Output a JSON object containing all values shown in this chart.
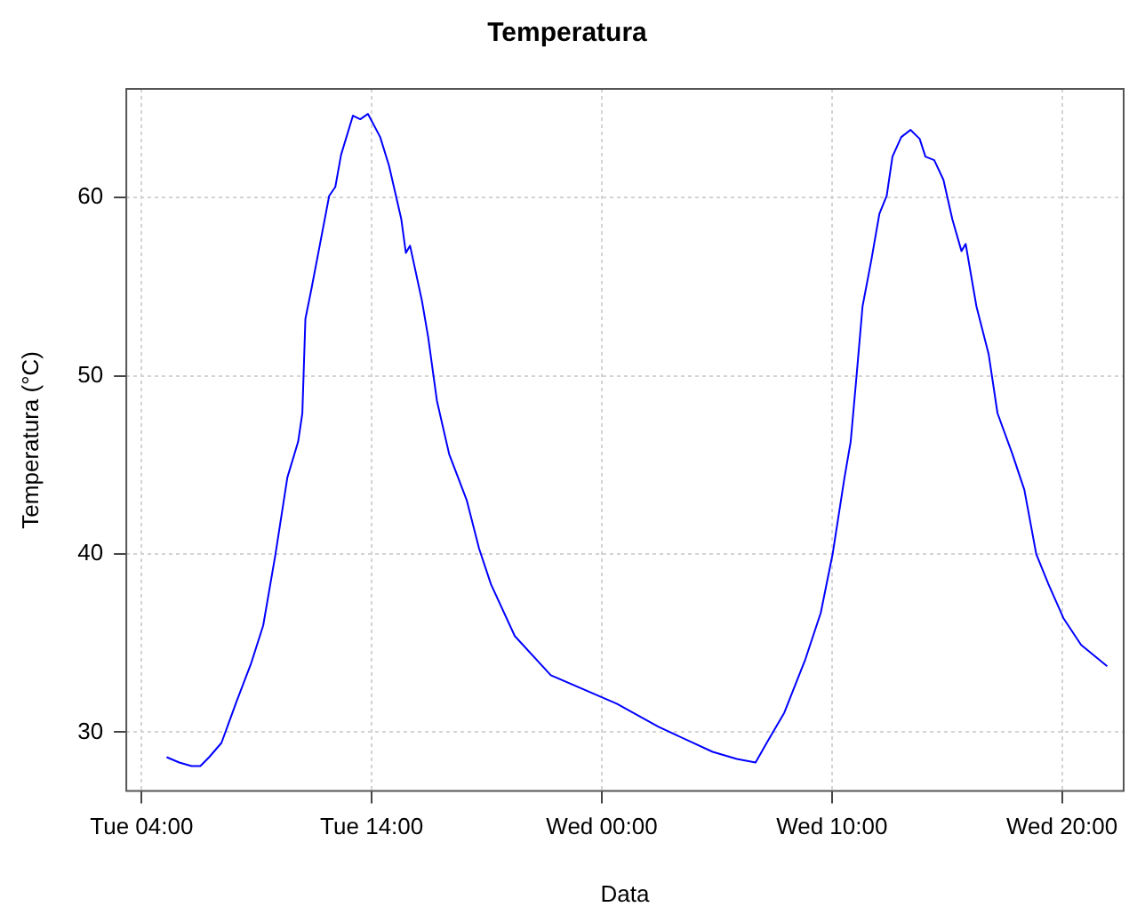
{
  "chart_data": {
    "type": "line",
    "title": "Temperatura",
    "xlabel": "Data",
    "ylabel": "Temperatura (°C)",
    "xlim": [
      "--01-02T03:20",
      "--01-03T22:41"
    ],
    "xticks": [
      {
        "value": "--01-02T04:00",
        "label": "Tue 04:00"
      },
      {
        "value": "--01-02T14:00",
        "label": "Tue 14:00"
      },
      {
        "value": "--01-03T00:00",
        "label": "Wed 00:00"
      },
      {
        "value": "--01-03T10:00",
        "label": "Wed 10:00"
      },
      {
        "value": "--01-03T20:00",
        "label": "Wed 20:00"
      }
    ],
    "ylim": [
      26.7,
      66.1
    ],
    "yticks": [
      30,
      40,
      50,
      60
    ],
    "grid": true,
    "legend": false,
    "marker": "none",
    "line_style": "solid",
    "series": [
      {
        "color": "#0000ff",
        "x": [
          "--01-02T05:05",
          "--01-02T05:38",
          "--01-02T06:10",
          "--01-02T06:33",
          "--01-02T06:56",
          "--01-02T07:28",
          "--01-02T08:07",
          "--01-02T08:46",
          "--01-02T09:17",
          "--01-02T09:49",
          "--01-02T10:20",
          "--01-02T10:48",
          "--01-02T10:59",
          "--01-02T11:07",
          "--01-02T11:22",
          "--01-02T11:46",
          "--01-02T12:09",
          "--01-02T12:25",
          "--01-02T12:40",
          "--01-02T13:11",
          "--01-02T13:30",
          "--01-02T13:50",
          "--01-02T14:22",
          "--01-02T14:45",
          "--01-02T15:17",
          "--01-02T15:29",
          "--01-02T15:40",
          "--01-02T16:11",
          "--01-02T16:27",
          "--01-02T16:50",
          "--01-02T17:22",
          "--01-02T18:08",
          "--01-02T18:40",
          "--01-02T19:11",
          "--01-02T20:13",
          "--01-02T21:47",
          "--01-03T00:39",
          "--01-03T02:28",
          "--01-03T04:49",
          "--01-03T05:52",
          "--01-03T06:41",
          "--01-03T07:10",
          "--01-03T07:56",
          "--01-03T08:51",
          "--01-03T09:31",
          "--01-03T10:02",
          "--01-03T10:33",
          "--01-03T10:49",
          "--01-03T11:04",
          "--01-03T11:20",
          "--01-03T11:43",
          "--01-03T12:04",
          "--01-03T12:23",
          "--01-03T12:38",
          "--01-03T13:01",
          "--01-03T13:25",
          "--01-03T13:49",
          "--01-03T14:04",
          "--01-03T14:27",
          "--01-03T14:51",
          "--01-03T15:14",
          "--01-03T15:38",
          "--01-03T15:49",
          "--01-03T16:17",
          "--01-03T16:49",
          "--01-03T17:12",
          "--01-03T17:51",
          "--01-03T18:22",
          "--01-03T18:53",
          "--01-03T19:25",
          "--01-03T20:04",
          "--01-03T20:50",
          "--01-03T21:58"
        ],
        "values": [
          28.6,
          28.3,
          28.1,
          28.1,
          28.6,
          29.4,
          31.7,
          33.9,
          36.0,
          40.0,
          44.3,
          46.3,
          47.9,
          53.2,
          54.8,
          57.5,
          60.1,
          60.6,
          62.4,
          64.6,
          64.4,
          64.7,
          63.4,
          61.8,
          58.8,
          56.9,
          57.3,
          54.2,
          52.2,
          48.6,
          45.6,
          43.0,
          40.3,
          38.3,
          35.4,
          33.2,
          31.6,
          30.3,
          28.9,
          28.5,
          28.3,
          29.4,
          31.1,
          34.1,
          36.7,
          40.0,
          44.3,
          46.3,
          49.9,
          53.9,
          56.5,
          59.1,
          60.1,
          62.3,
          63.4,
          63.8,
          63.3,
          62.3,
          62.1,
          61.0,
          58.8,
          57.0,
          57.4,
          53.9,
          51.2,
          47.9,
          45.6,
          43.6,
          40.0,
          38.3,
          36.4,
          34.9,
          33.7
        ]
      }
    ]
  }
}
